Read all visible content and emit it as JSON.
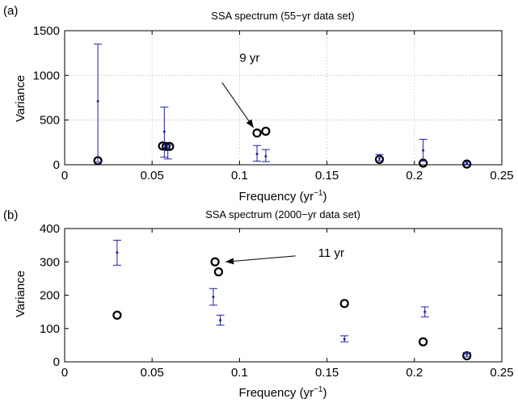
{
  "colors": {
    "errorbar": "#1f1fa8",
    "circle": "#000000",
    "axis": "#000000",
    "grid": "#cfcfcf"
  },
  "chart_data": [
    {
      "type": "scatter",
      "panel_label": "(a)",
      "title": "SSA spectrum (55−yr data set)",
      "xlabel": "Frequency (yr",
      "xlabel_sup": "−1",
      "xlabel_close": ")",
      "ylabel": "Variance",
      "xlim": [
        0,
        0.25
      ],
      "ylim": [
        0,
        1500
      ],
      "xticks": [
        0,
        0.05,
        0.1,
        0.15,
        0.2,
        0.25
      ],
      "xtick_labels": [
        "0",
        "0.05",
        "0.1",
        "0.15",
        "0.2",
        "0.25"
      ],
      "yticks": [
        0,
        500,
        1000,
        1500
      ],
      "ytick_labels": [
        "0",
        "500",
        "1000",
        "1500"
      ],
      "grid": true,
      "series": [
        {
          "kind": "circles",
          "points": [
            [
              0.019,
              45
            ],
            [
              0.056,
              210
            ],
            [
              0.058,
              205
            ],
            [
              0.06,
              205
            ],
            [
              0.11,
              355
            ],
            [
              0.115,
              375
            ],
            [
              0.18,
              60
            ],
            [
              0.205,
              18
            ],
            [
              0.23,
              8
            ]
          ]
        },
        {
          "kind": "errorbars",
          "bars": [
            {
              "x": 0.019,
              "center": 710,
              "low": 30,
              "high": 1350
            },
            {
              "x": 0.057,
              "center": 370,
              "low": 85,
              "high": 645
            },
            {
              "x": 0.059,
              "center": 180,
              "low": 65,
              "high": 220
            },
            {
              "x": 0.11,
              "center": 120,
              "low": 40,
              "high": 215
            },
            {
              "x": 0.115,
              "center": 95,
              "low": 35,
              "high": 170
            },
            {
              "x": 0.18,
              "center": 70,
              "low": 45,
              "high": 115
            },
            {
              "x": 0.205,
              "center": 160,
              "low": 40,
              "high": 285
            },
            {
              "x": 0.23,
              "center": 15,
              "low": 5,
              "high": 30
            }
          ]
        }
      ],
      "annotation": {
        "text": "9 yr",
        "text_x": 0.1,
        "text_y": 1150,
        "arrow_from": [
          0.09,
          920
        ],
        "arrow_to": [
          0.108,
          415
        ]
      }
    },
    {
      "type": "scatter",
      "panel_label": "(b)",
      "title": "SSA spectrum (2000−yr data set)",
      "xlabel": "Frequency (yr",
      "xlabel_sup": "−1",
      "xlabel_close": ")",
      "ylabel": "Variance",
      "xlim": [
        0,
        0.25
      ],
      "ylim": [
        0,
        400
      ],
      "xticks": [
        0,
        0.05,
        0.1,
        0.15,
        0.2,
        0.25
      ],
      "xtick_labels": [
        "0",
        "0.05",
        "0.1",
        "0.15",
        "0.2",
        "0.25"
      ],
      "yticks": [
        0,
        100,
        200,
        300,
        400
      ],
      "ytick_labels": [
        "0",
        "100",
        "200",
        "300",
        "400"
      ],
      "grid": false,
      "series": [
        {
          "kind": "circles",
          "points": [
            [
              0.03,
              140
            ],
            [
              0.086,
              300
            ],
            [
              0.088,
              270
            ],
            [
              0.16,
              175
            ],
            [
              0.205,
              60
            ],
            [
              0.23,
              18
            ]
          ]
        },
        {
          "kind": "errorbars",
          "bars": [
            {
              "x": 0.03,
              "center": 328,
              "low": 290,
              "high": 365
            },
            {
              "x": 0.085,
              "center": 195,
              "low": 170,
              "high": 220
            },
            {
              "x": 0.089,
              "center": 125,
              "low": 110,
              "high": 140
            },
            {
              "x": 0.16,
              "center": 68,
              "low": 60,
              "high": 78
            },
            {
              "x": 0.206,
              "center": 150,
              "low": 135,
              "high": 165
            },
            {
              "x": 0.23,
              "center": 22,
              "low": 15,
              "high": 28
            }
          ]
        }
      ],
      "annotation": {
        "text": "11 yr",
        "text_x": 0.145,
        "text_y": 315,
        "arrow_from": [
          0.132,
          318
        ],
        "arrow_to": [
          0.092,
          300
        ]
      }
    }
  ]
}
